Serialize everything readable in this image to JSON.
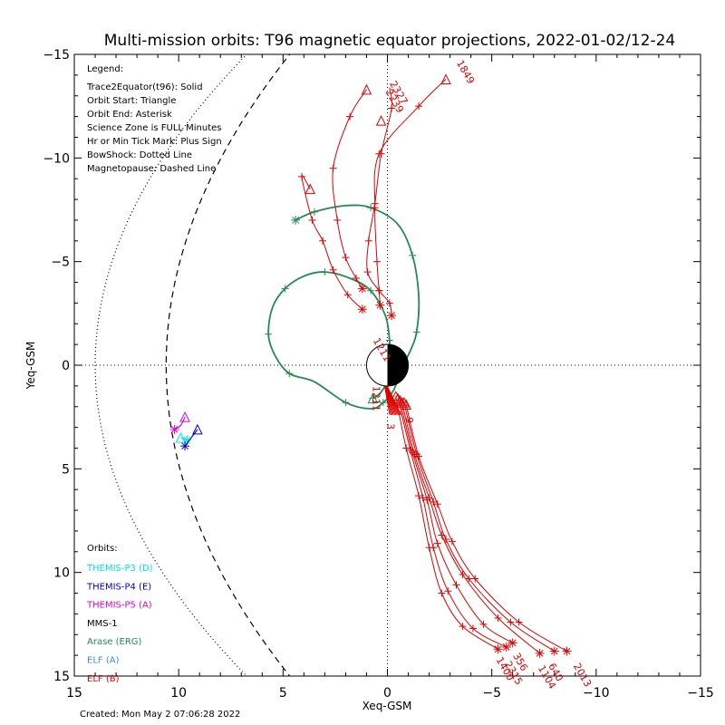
{
  "chart_data": {
    "type": "line",
    "title": "Multi-mission orbits: T96 magnetic equator projections, 2022-01-02/12-24",
    "xlabel": "Xeq-GSM",
    "ylabel": "Yeq-GSM",
    "xlim": [
      15,
      -15
    ],
    "ylim": [
      15,
      -15
    ],
    "x_ticks": [
      15,
      10,
      5,
      0,
      -5,
      -10,
      -15
    ],
    "y_ticks": [
      -15,
      -10,
      -5,
      0,
      5,
      10,
      15
    ],
    "x_tick_labels": [
      "15",
      "10",
      "5",
      "0",
      "−5",
      "−10",
      "−15"
    ],
    "y_tick_labels": [
      "−15",
      "−10",
      "−5",
      "0",
      "5",
      "10",
      "15"
    ],
    "legend_title": "Legend:",
    "legend_lines": [
      "Trace2Equator(t96): Solid",
      "Orbit Start: Triangle",
      "Orbit End: Asterisk",
      "Science Zone is FULL Minutes",
      "Hr or Min Tick Mark: Plus Sign",
      "BowShock: Dotted Line",
      "Magnetopause: Dashed Line"
    ],
    "orbits_title": "Orbits:",
    "created": "Created: Mon May  2 07:06:28 2022",
    "colors": {
      "themis_p3": "#00e5e5",
      "themis_p4": "#0000cc",
      "themis_p5": "#e000e0",
      "mms1": "#000000",
      "arase": "#228b4f",
      "elf_a": "#3b8ee8",
      "elf_b": "#e00000"
    },
    "series": [
      {
        "name": "THEMIS-P3 (D)",
        "color": "#00e5e5",
        "points": [
          [
            9.6,
            3.6
          ],
          [
            9.9,
            3.5
          ]
        ],
        "start": [
          9.9,
          3.5
        ],
        "end": [
          9.6,
          3.6
        ]
      },
      {
        "name": "THEMIS-P4 (E)",
        "color": "#0000cc",
        "points": [
          [
            9.7,
            3.9
          ],
          [
            9.1,
            3.1
          ]
        ],
        "start": [
          9.1,
          3.1
        ],
        "end": [
          9.7,
          3.9
        ]
      },
      {
        "name": "THEMIS-P5 (A)",
        "color": "#e000e0",
        "points": [
          [
            10.2,
            3.1
          ],
          [
            9.9,
            2.9
          ],
          [
            9.7,
            2.5
          ]
        ],
        "start": [
          9.7,
          2.5
        ],
        "end": [
          10.2,
          3.1
        ]
      },
      {
        "name": "MMS-1",
        "color": "#000000",
        "points": []
      },
      {
        "name": "Arase (ERG)",
        "color": "#228b4f",
        "points": [
          [
            4.4,
            -7.0
          ],
          [
            3.5,
            -7.4
          ],
          [
            2.0,
            -7.7
          ],
          [
            0.8,
            -7.6
          ],
          [
            -0.5,
            -6.8
          ],
          [
            -1.2,
            -5.3
          ],
          [
            -1.5,
            -3.3
          ],
          [
            -1.4,
            -1.6
          ],
          [
            -1.1,
            -0.7
          ],
          [
            -0.7,
            0.1
          ],
          [
            -0.3,
            1.2
          ],
          [
            0.2,
            1.8
          ],
          [
            0.8,
            2.1
          ],
          [
            2.0,
            1.8
          ],
          [
            3.5,
            0.8
          ],
          [
            4.7,
            0.4
          ],
          [
            5.4,
            -0.5
          ],
          [
            5.7,
            -1.5
          ],
          [
            5.5,
            -2.8
          ],
          [
            4.9,
            -3.7
          ],
          [
            4.0,
            -4.3
          ],
          [
            3.0,
            -4.5
          ],
          [
            1.8,
            -4.2
          ],
          [
            0.8,
            -3.6
          ],
          [
            0.1,
            -2.4
          ],
          [
            -0.1,
            -1.2
          ],
          [
            -0.1,
            -0.3
          ],
          [
            -0.1,
            0.5
          ],
          [
            0.3,
            1.3
          ],
          [
            0.7,
            1.6
          ]
        ],
        "start": [
          0.7,
          1.6
        ],
        "end": [
          4.4,
          -7.0
        ]
      },
      {
        "name": "ELF (A)",
        "color": "#3b8ee8",
        "points": []
      },
      {
        "name": "ELF (B)",
        "color": "#e00000",
        "points": []
      }
    ],
    "elf_b_tracks": [
      {
        "label": "2327",
        "points": [
          [
            -0.1,
            -13.4
          ],
          [
            -0.2,
            -12.4
          ],
          [
            0.3,
            -10.2
          ],
          [
            0.6,
            -7.8
          ],
          [
            0.9,
            -6.0
          ],
          [
            0.95,
            -4.5
          ],
          [
            0.4,
            -3.6
          ],
          [
            -0.1,
            -3.0
          ],
          [
            -0.2,
            -2.4
          ]
        ],
        "start": [
          0.3,
          -11.8
        ],
        "end": [
          -0.2,
          -2.4
        ],
        "label_at": [
          -0.1,
          -13.6
        ]
      },
      {
        "label": "1849",
        "points": [
          [
            -2.8,
            -13.8
          ],
          [
            -1.5,
            -12.5
          ],
          [
            0.4,
            -10.2
          ],
          [
            0.6,
            -7.6
          ],
          [
            0.5,
            -5.0
          ],
          [
            0.4,
            -3.6
          ],
          [
            0.35,
            -2.9
          ]
        ],
        "start": [
          -2.8,
          -13.8
        ],
        "end": [
          0.35,
          -2.9
        ],
        "label_at": [
          -3.3,
          -14.6
        ]
      },
      {
        "label": "2239",
        "points": [
          [
            1.0,
            -13.3
          ],
          [
            1.8,
            -12.0
          ],
          [
            2.6,
            -9.5
          ],
          [
            2.4,
            -7.0
          ],
          [
            2.0,
            -5.2
          ],
          [
            1.5,
            -4.2
          ],
          [
            1.2,
            -3.7
          ]
        ],
        "start": [
          1.0,
          -13.3
        ],
        "end": [
          1.2,
          -3.7
        ],
        "label_at": [
          0.1,
          -13.2
        ]
      },
      {
        "label": "1211",
        "points": [
          [
            3.7,
            -8.5
          ],
          [
            4.1,
            -9.1
          ],
          [
            3.6,
            -7.0
          ],
          [
            3.1,
            -6.0
          ],
          [
            2.6,
            -4.6
          ],
          [
            1.9,
            -3.4
          ],
          [
            1.2,
            -2.7
          ]
        ],
        "start": [
          3.7,
          -8.5
        ],
        "end": [
          1.2,
          -2.7
        ],
        "label_at": [
          0.7,
          -1.2
        ]
      },
      {
        "label": "1400",
        "points": [
          [
            -0.4,
            1.5
          ],
          [
            -0.9,
            4.0
          ],
          [
            -1.5,
            6.3
          ],
          [
            -2.0,
            8.8
          ],
          [
            -2.6,
            11.0
          ],
          [
            -3.6,
            12.6
          ],
          [
            -5.3,
            13.7
          ]
        ],
        "start": [
          -0.4,
          1.5
        ],
        "end": [
          -5.3,
          13.7
        ],
        "label_at": [
          -5.2,
          14.2
        ]
      },
      {
        "label": "2315",
        "points": [
          [
            -0.5,
            1.6
          ],
          [
            -1.1,
            4.1
          ],
          [
            -1.7,
            6.4
          ],
          [
            -2.2,
            8.8
          ],
          [
            -2.9,
            10.9
          ],
          [
            -4.1,
            12.7
          ],
          [
            -5.7,
            13.6
          ]
        ],
        "start": [
          -0.5,
          1.6
        ],
        "end": [
          -5.7,
          13.6
        ],
        "label_at": [
          -5.6,
          14.4
        ]
      },
      {
        "label": "356",
        "points": [
          [
            -0.6,
            1.7
          ],
          [
            -1.2,
            4.2
          ],
          [
            -1.9,
            6.5
          ],
          [
            -2.4,
            8.6
          ],
          [
            -3.3,
            10.6
          ],
          [
            -4.6,
            12.5
          ],
          [
            -6.0,
            13.4
          ]
        ],
        "start": [
          -0.6,
          1.7
        ],
        "end": [
          -6.0,
          13.4
        ],
        "label_at": [
          -6.0,
          14.0
        ]
      },
      {
        "label": "1104",
        "points": [
          [
            -0.7,
            1.8
          ],
          [
            -1.3,
            4.3
          ],
          [
            -2.0,
            6.4
          ],
          [
            -2.6,
            8.2
          ],
          [
            -3.6,
            10.1
          ],
          [
            -5.3,
            12.2
          ],
          [
            -7.3,
            13.9
          ]
        ],
        "start": [
          -0.7,
          1.8
        ],
        "end": [
          -7.3,
          13.9
        ],
        "label_at": [
          -7.2,
          14.6
        ]
      },
      {
        "label": "640",
        "points": [
          [
            -0.8,
            1.8
          ],
          [
            -1.4,
            4.3
          ],
          [
            -2.2,
            6.6
          ],
          [
            -2.8,
            8.4
          ],
          [
            -3.9,
            10.3
          ],
          [
            -5.9,
            12.4
          ],
          [
            -8.0,
            13.8
          ]
        ],
        "start": [
          -0.8,
          1.8
        ],
        "end": [
          -8.0,
          13.8
        ],
        "label_at": [
          -7.7,
          14.5
        ]
      },
      {
        "label": "2013",
        "points": [
          [
            -0.9,
            1.9
          ],
          [
            -1.5,
            4.4
          ],
          [
            -2.4,
            6.7
          ],
          [
            -3.1,
            8.5
          ],
          [
            -4.2,
            10.3
          ],
          [
            -6.3,
            12.4
          ],
          [
            -8.6,
            13.8
          ]
        ],
        "start": [
          -0.9,
          1.9
        ],
        "end": [
          -8.6,
          13.8
        ],
        "label_at": [
          -8.9,
          14.5
        ]
      }
    ],
    "near_earth_labels": [
      "1211",
      "3",
      "9"
    ],
    "bow_shock": "dotted",
    "magnetopause": "dashed",
    "grid": false
  }
}
